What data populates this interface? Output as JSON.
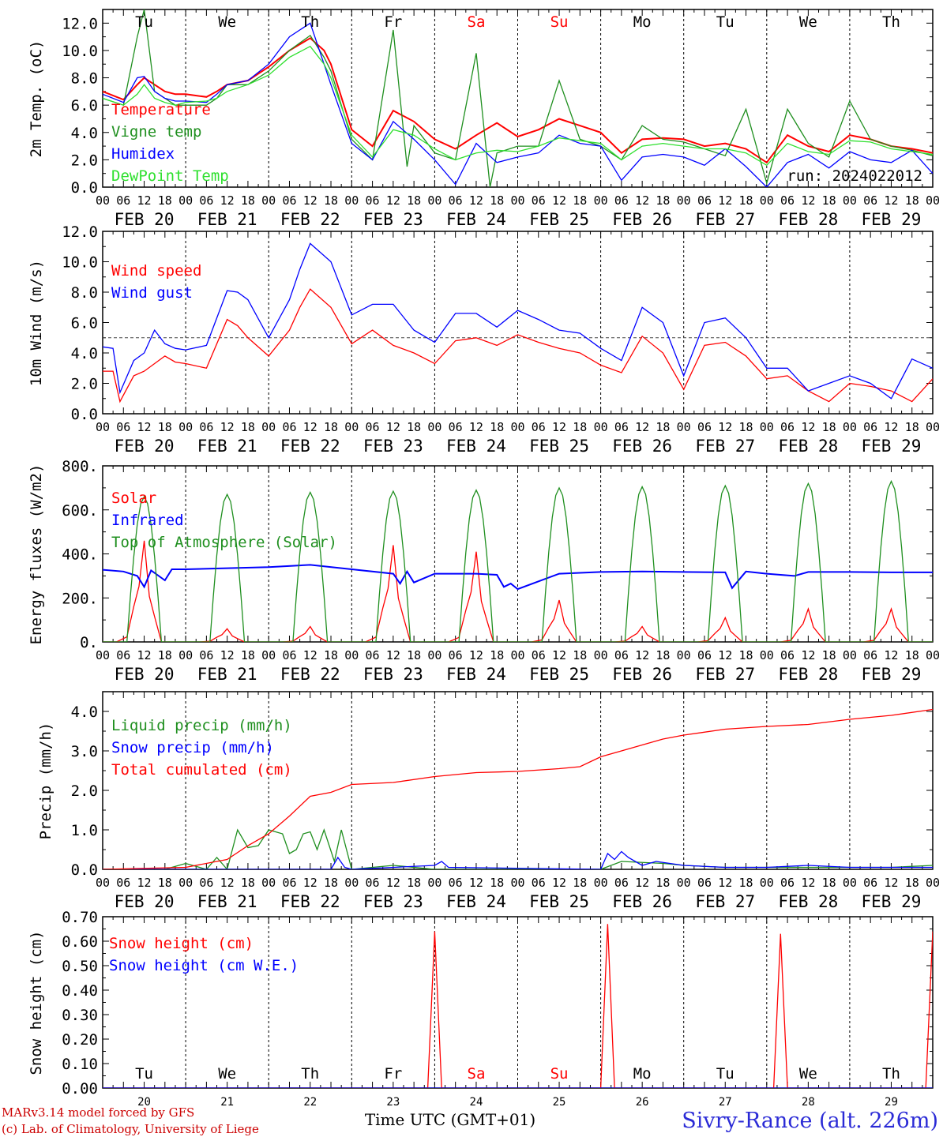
{
  "colors": {
    "red": "#ff0000",
    "green": "#1f8f1f",
    "lightgreen": "#2fe02f",
    "blue": "#0000ff",
    "darkred": "#cc0000",
    "weekend": "#ff0000",
    "frame": "#000000"
  },
  "dates": [
    "FEB 20",
    "FEB 21",
    "FEB 22",
    "FEB 23",
    "FEB 24",
    "FEB 25",
    "FEB 26",
    "FEB 27",
    "FEB 28",
    "FEB 29"
  ],
  "day_numbers": [
    "20",
    "21",
    "22",
    "23",
    "24",
    "25",
    "26",
    "27",
    "28",
    "29"
  ],
  "weekdays_top": [
    "Tu",
    "We",
    "Th",
    "Fr",
    "Sa",
    "Su",
    "Mo",
    "Tu",
    "We",
    "Th"
  ],
  "weekend_flags": [
    false,
    false,
    false,
    false,
    true,
    true,
    false,
    false,
    false,
    false
  ],
  "hour_ticks": [
    "00",
    "06",
    "12",
    "18"
  ],
  "footer": {
    "model_line": "MARv3.14 model forced by GFS",
    "lab_line": "(c) Lab. of Climatology, University of Liege",
    "xlabel": "Time UTC (GMT+01)",
    "location": "Sivry-Rance (alt. 226m)"
  },
  "chart_data": [
    {
      "type": "line",
      "ylabel": "2m Temp. (oC)",
      "ylim": [
        0,
        13
      ],
      "yticks": [
        "0.0",
        "2.0",
        "4.0",
        "6.0",
        "8.0",
        "10.0",
        "12.0"
      ],
      "run_label": "run: 2024022012",
      "x_unit": "hours since FEB 20 00 UTC",
      "series": [
        {
          "name": "Temperature",
          "color": "#ff0000",
          "x": [
            0,
            6,
            10,
            12,
            15,
            18,
            21,
            24,
            30,
            33,
            36,
            42,
            48,
            54,
            60,
            64,
            66,
            72,
            78,
            84,
            90,
            96,
            102,
            108,
            114,
            120,
            126,
            132,
            138,
            144,
            150,
            156,
            162,
            168,
            174,
            180,
            186,
            192,
            198,
            204,
            210,
            216,
            222,
            228,
            234,
            240
          ],
          "values": [
            7.0,
            6.4,
            7.5,
            8.0,
            7.5,
            7.0,
            6.8,
            6.8,
            6.6,
            7.0,
            7.5,
            7.8,
            8.8,
            10.0,
            10.9,
            10.0,
            9.0,
            4.2,
            3.0,
            5.6,
            4.8,
            3.5,
            2.8,
            3.8,
            4.7,
            3.7,
            4.2,
            5.0,
            4.5,
            4.0,
            2.5,
            3.5,
            3.6,
            3.5,
            3.0,
            3.2,
            2.8,
            1.8,
            3.8,
            3.0,
            2.6,
            3.8,
            3.5,
            3.0,
            2.8,
            2.5
          ]
        },
        {
          "name": "Vigne temp",
          "color": "#1f8f1f",
          "x": [
            0,
            6,
            10,
            12,
            15,
            18,
            21,
            24,
            30,
            33,
            36,
            42,
            48,
            54,
            60,
            64,
            66,
            72,
            78,
            84,
            88,
            90,
            96,
            102,
            108,
            112,
            114,
            120,
            126,
            132,
            138,
            144,
            150,
            156,
            162,
            168,
            174,
            180,
            186,
            192,
            198,
            204,
            210,
            216,
            222,
            228,
            234,
            240
          ],
          "values": [
            6.5,
            6.0,
            11.0,
            13.0,
            7.0,
            6.5,
            6.0,
            6.0,
            6.0,
            6.5,
            7.5,
            7.5,
            8.5,
            10.0,
            11.1,
            9.5,
            8.5,
            3.5,
            2.0,
            11.5,
            1.5,
            4.5,
            2.5,
            2.0,
            9.8,
            0.0,
            2.5,
            3.0,
            3.0,
            7.8,
            3.5,
            3.0,
            2.0,
            4.5,
            3.5,
            3.3,
            2.8,
            2.3,
            5.7,
            0.3,
            5.7,
            3.2,
            2.2,
            6.3,
            3.5,
            3.0,
            2.7,
            2.3
          ]
        },
        {
          "name": "Humidex",
          "color": "#0000ff",
          "x": [
            0,
            6,
            10,
            12,
            15,
            18,
            21,
            24,
            30,
            33,
            36,
            42,
            48,
            54,
            60,
            64,
            66,
            72,
            78,
            84,
            90,
            96,
            102,
            108,
            114,
            120,
            126,
            132,
            138,
            144,
            150,
            156,
            162,
            168,
            174,
            180,
            186,
            192,
            198,
            204,
            210,
            216,
            222,
            228,
            234,
            240
          ],
          "values": [
            6.8,
            6.2,
            8.0,
            8.1,
            7.0,
            6.5,
            6.3,
            6.3,
            6.2,
            6.8,
            7.5,
            7.8,
            9.0,
            11.0,
            12.0,
            9.0,
            7.5,
            3.2,
            2.0,
            4.8,
            3.5,
            2.0,
            0.2,
            3.2,
            1.8,
            2.2,
            2.5,
            3.8,
            3.2,
            3.0,
            0.5,
            2.2,
            2.4,
            2.2,
            1.6,
            2.8,
            1.5,
            0.0,
            1.8,
            2.4,
            1.4,
            2.6,
            2.0,
            1.8,
            2.7,
            1.0
          ]
        },
        {
          "name": "DewPoint Temp",
          "color": "#2fe02f",
          "x": [
            0,
            6,
            10,
            12,
            15,
            18,
            21,
            24,
            30,
            33,
            36,
            42,
            48,
            54,
            60,
            64,
            66,
            72,
            78,
            84,
            90,
            96,
            102,
            108,
            114,
            120,
            126,
            132,
            138,
            144,
            150,
            156,
            162,
            168,
            174,
            180,
            186,
            192,
            198,
            204,
            210,
            216,
            222,
            228,
            234,
            240
          ],
          "values": [
            6.5,
            6.0,
            6.8,
            7.5,
            6.5,
            6.2,
            6.0,
            6.2,
            6.3,
            6.5,
            7.0,
            7.5,
            8.2,
            9.5,
            10.3,
            9.0,
            8.0,
            3.8,
            2.2,
            4.2,
            3.8,
            2.8,
            2.0,
            2.5,
            2.7,
            2.6,
            3.0,
            3.6,
            3.4,
            3.2,
            2.0,
            3.0,
            3.2,
            3.0,
            2.8,
            2.8,
            2.5,
            1.6,
            3.2,
            2.6,
            2.4,
            3.4,
            3.3,
            2.8,
            2.6,
            2.4
          ]
        }
      ]
    },
    {
      "type": "line",
      "ylabel": "10m Wind (m/s)",
      "ylim": [
        0,
        12
      ],
      "yticks": [
        "0.0",
        "2.0",
        "4.0",
        "6.0",
        "8.0",
        "10.0",
        "12.0"
      ],
      "reference_line": 5.0,
      "series": [
        {
          "name": "Wind speed",
          "color": "#ff0000",
          "x": [
            0,
            3,
            5,
            9,
            12,
            18,
            21,
            24,
            30,
            36,
            39,
            42,
            48,
            54,
            57,
            60,
            66,
            72,
            78,
            84,
            90,
            96,
            102,
            108,
            114,
            120,
            126,
            132,
            138,
            144,
            150,
            156,
            162,
            168,
            174,
            180,
            186,
            192,
            198,
            204,
            210,
            216,
            222,
            228,
            234,
            240
          ],
          "values": [
            2.8,
            2.8,
            0.8,
            2.5,
            2.8,
            3.8,
            3.4,
            3.3,
            3.0,
            6.2,
            5.8,
            5.0,
            3.8,
            5.5,
            7.0,
            8.2,
            7.0,
            4.6,
            5.5,
            4.5,
            4.0,
            3.3,
            4.8,
            5.0,
            4.5,
            5.2,
            4.7,
            4.3,
            4.0,
            3.2,
            2.7,
            5.1,
            4.0,
            1.6,
            4.5,
            4.7,
            3.8,
            2.3,
            2.5,
            1.5,
            0.8,
            2.0,
            1.8,
            1.5,
            0.8,
            2.3
          ]
        },
        {
          "name": "Wind gust",
          "color": "#0000ff",
          "x": [
            0,
            3,
            5,
            9,
            12,
            15,
            18,
            21,
            24,
            30,
            36,
            39,
            42,
            48,
            54,
            57,
            60,
            66,
            72,
            78,
            84,
            90,
            96,
            102,
            108,
            114,
            120,
            126,
            132,
            138,
            144,
            150,
            156,
            162,
            168,
            174,
            180,
            186,
            192,
            198,
            204,
            210,
            216,
            222,
            228,
            234,
            240
          ],
          "values": [
            4.4,
            4.3,
            1.4,
            3.5,
            4.0,
            5.5,
            4.6,
            4.3,
            4.2,
            4.5,
            8.1,
            8.0,
            7.5,
            5.0,
            7.5,
            9.5,
            11.2,
            10.0,
            6.5,
            7.2,
            7.2,
            5.5,
            4.7,
            6.6,
            6.6,
            5.7,
            6.8,
            6.2,
            5.5,
            5.3,
            4.3,
            3.5,
            7.0,
            6.0,
            2.5,
            6.0,
            6.3,
            5.0,
            3.0,
            3.0,
            1.5,
            2.0,
            2.5,
            2.0,
            1.0,
            3.6,
            3.0
          ]
        }
      ]
    },
    {
      "type": "line",
      "ylabel": "Energy fluxes (W/m2)",
      "ylim": [
        0,
        800
      ],
      "yticks": [
        "0.",
        "200.",
        "400.",
        "600.",
        "800."
      ],
      "series": [
        {
          "name": "Solar",
          "day_peaks": [
            460,
            60,
            70,
            440,
            410,
            190,
            70,
            110,
            150,
            150
          ]
        },
        {
          "name": "Infrared",
          "color": "#0000ff",
          "x": [
            0,
            6,
            10,
            12,
            14,
            18,
            20,
            24,
            36,
            48,
            60,
            72,
            84,
            86,
            88,
            90,
            96,
            108,
            114,
            116,
            118,
            120,
            132,
            144,
            156,
            168,
            180,
            182,
            186,
            192,
            200,
            204,
            216,
            228,
            240
          ],
          "values": [
            328,
            320,
            300,
            250,
            325,
            280,
            330,
            330,
            335,
            340,
            350,
            330,
            310,
            265,
            320,
            270,
            310,
            310,
            305,
            250,
            265,
            240,
            310,
            318,
            320,
            318,
            316,
            245,
            320,
            310,
            300,
            318,
            318,
            316,
            316
          ]
        },
        {
          "name": "Top of Atmosphere (Solar)",
          "day_peaks": [
            660,
            670,
            680,
            685,
            690,
            700,
            705,
            710,
            720,
            730
          ]
        }
      ]
    },
    {
      "type": "line",
      "ylabel": "Precip (mm/h)",
      "ylim": [
        0,
        4.5
      ],
      "yticks": [
        "0.0",
        "1.0",
        "2.0",
        "3.0",
        "4.0"
      ],
      "series": [
        {
          "name": "Liquid precip (mm/h)",
          "color": "#1f8f1f",
          "x": [
            0,
            4,
            18,
            24,
            30,
            33,
            36,
            39,
            42,
            45,
            48,
            52,
            54,
            56,
            58,
            60,
            62,
            64,
            67,
            69,
            72,
            84,
            96,
            144,
            150,
            162,
            168,
            180,
            192,
            204,
            216,
            228,
            240
          ],
          "values": [
            0,
            0,
            0,
            0.15,
            0,
            0.3,
            0,
            1.0,
            0.55,
            0.6,
            1.0,
            0.9,
            0.4,
            0.5,
            0.9,
            0.95,
            0.5,
            1.0,
            0.2,
            1.0,
            0,
            0.1,
            0,
            0,
            0.2,
            0.15,
            0.1,
            0.05,
            0.05,
            0.05,
            0.05,
            0.05,
            0.1
          ]
        },
        {
          "name": "Snow precip (mm/h)",
          "color": "#0000ff",
          "x": [
            0,
            24,
            66,
            68,
            70,
            72,
            96,
            98,
            100,
            144,
            146,
            148,
            150,
            152,
            156,
            160,
            168,
            180,
            192,
            204,
            216,
            228,
            240
          ],
          "values": [
            0,
            0,
            0,
            0.3,
            0.05,
            0,
            0.1,
            0.2,
            0.05,
            0,
            0.4,
            0.25,
            0.45,
            0.3,
            0.1,
            0.2,
            0.1,
            0.05,
            0.05,
            0.1,
            0.05,
            0.05,
            0.05
          ]
        },
        {
          "name": "Total cumulated (cm)",
          "color": "#ff0000",
          "x": [
            0,
            24,
            36,
            42,
            48,
            54,
            60,
            66,
            72,
            84,
            96,
            108,
            120,
            132,
            138,
            144,
            150,
            156,
            162,
            168,
            180,
            192,
            204,
            216,
            228,
            240
          ],
          "values": [
            0,
            0.05,
            0.25,
            0.6,
            0.9,
            1.35,
            1.85,
            1.95,
            2.15,
            2.2,
            2.35,
            2.45,
            2.48,
            2.55,
            2.6,
            2.85,
            3.0,
            3.15,
            3.3,
            3.4,
            3.55,
            3.62,
            3.67,
            3.8,
            3.9,
            4.05
          ]
        }
      ]
    },
    {
      "type": "line",
      "ylabel": "Snow height (cm)",
      "ylim": [
        0,
        0.7
      ],
      "yticks": [
        "0.00",
        "0.10",
        "0.20",
        "0.30",
        "0.40",
        "0.50",
        "0.60",
        "0.70"
      ],
      "series": [
        {
          "name": "Snow height (cm)",
          "color": "#ff0000",
          "x": [
            0,
            94,
            96,
            98,
            144,
            146,
            148,
            194,
            196,
            198,
            238,
            240
          ],
          "values": [
            0,
            0,
            0.64,
            0,
            0,
            0.67,
            0,
            0,
            0.63,
            0,
            0,
            0.64
          ]
        },
        {
          "name": "Snow height (cm W.E.)",
          "color": "#0000ff",
          "x": [
            0,
            240
          ],
          "values": [
            0,
            0
          ]
        }
      ]
    }
  ]
}
